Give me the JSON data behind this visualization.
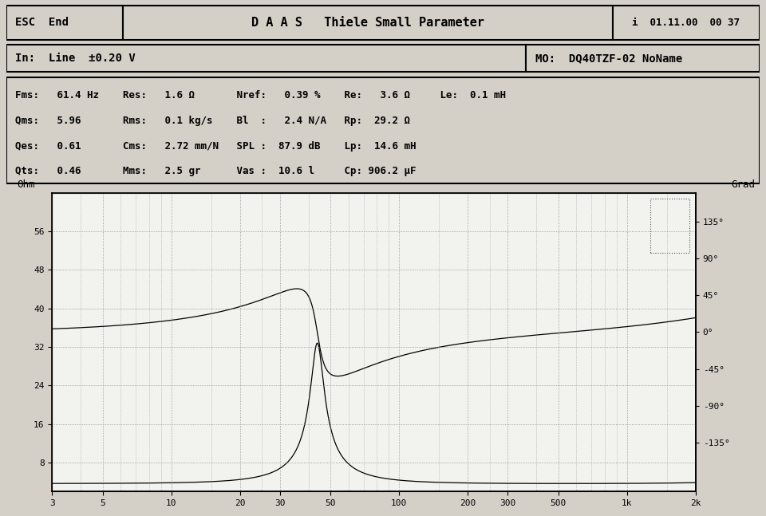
{
  "title_bar": "D A A S   Thiele Small Parameter",
  "esc_end": "ESC  End",
  "datetime": "i  01.11.00  00 37",
  "input_line": "In:  Line  ±0.20 V",
  "mo_line": "MO:  DQ40TZF-02 NoName",
  "params_rows": [
    "Fms:   61.4 Hz    Res:   1.6 Ω       Nref:   0.39 %    Re:   3.6 Ω     Le:  0.1 mH",
    "Qms:   5.96       Rms:   0.1 kg/s    Bl  :   2.4 N/A   Rp:  29.2 Ω",
    "Qes:   0.61       Cms:   2.72 mm/N   SPL :  87.9 dB    Lp:  14.6 mH",
    "Qts:   0.46       Mms:   2.5 gr      Vas :  10.6 l     Cp: 906.2 μF"
  ],
  "yticks_left": [
    8,
    16,
    24,
    32,
    40,
    48,
    56
  ],
  "yticks_right_vals": [
    58,
    50.4,
    42.7,
    35.1,
    27.4,
    19.8,
    12.1
  ],
  "yticks_right_labels": [
    "135°",
    "90°",
    "45°",
    "0°",
    "-45°",
    "-90°",
    "-135°"
  ],
  "xtick_labels": [
    "3",
    "5",
    "10",
    "20",
    "30",
    "50",
    "100",
    "200",
    "300",
    "500",
    "1k",
    "2k"
  ],
  "xtick_values": [
    3,
    5,
    10,
    20,
    30,
    50,
    100,
    200,
    300,
    500,
    1000,
    2000
  ],
  "minor_x": [
    4,
    6,
    7,
    8,
    9,
    15,
    25,
    40,
    60,
    70,
    80,
    90,
    150,
    250,
    400,
    600,
    700,
    800,
    900,
    1500
  ],
  "fms": 61.4,
  "Qms": 5.96,
  "Qes": 0.61,
  "Re": 3.6,
  "Le_mH": 0.1,
  "Rp": 29.2,
  "Lp_mH": 14.6,
  "Cp_uF": 906.2,
  "Res": 1.6,
  "peak_mag": 44.0,
  "ymin": 2.0,
  "ymax": 64.0,
  "bg_color": "#d4d0c8",
  "plot_bg": "#f2f2ee",
  "header_bg": "#d4d0c8",
  "grid_color": "#888888",
  "line_color": "#000000"
}
